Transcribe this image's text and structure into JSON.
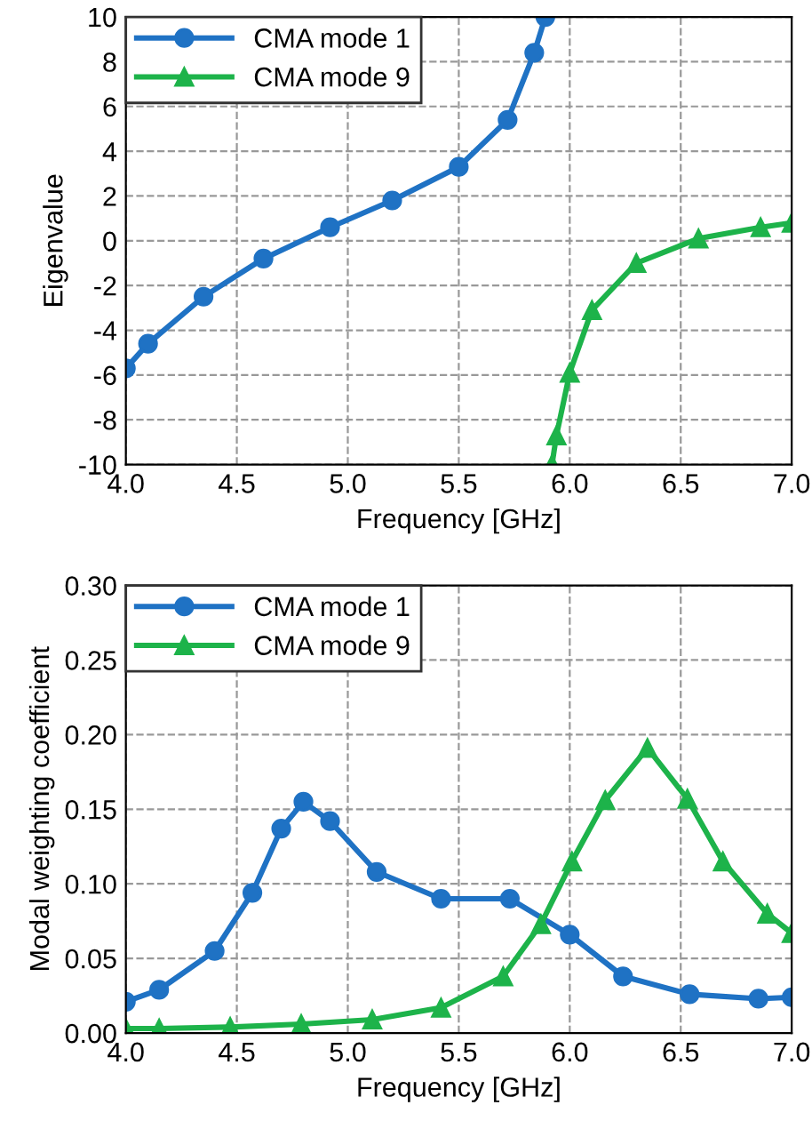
{
  "chart_data": [
    {
      "type": "line",
      "xlabel": "Frequency [GHz]",
      "ylabel": "Eigenvalue",
      "xlim": [
        4.0,
        7.0
      ],
      "ylim": [
        -10,
        10
      ],
      "xticks": [
        {
          "value": 4.0,
          "label": "4.0"
        },
        {
          "value": 4.5,
          "label": "4.5"
        },
        {
          "value": 5.0,
          "label": "5.0"
        },
        {
          "value": 5.5,
          "label": "5.5"
        },
        {
          "value": 6.0,
          "label": "6.0"
        },
        {
          "value": 6.5,
          "label": "6.5"
        },
        {
          "value": 7.0,
          "label": "7.0"
        }
      ],
      "yticks": [
        -10,
        -8,
        -6,
        -4,
        -2,
        0,
        2,
        4,
        6,
        8,
        10
      ],
      "grid": true,
      "legend": "top left",
      "line_style": "solid",
      "series": [
        {
          "name": "CMA mode 1",
          "color": "#1f72c4",
          "marker": "circle",
          "x": [
            4.0,
            4.1,
            4.35,
            4.62,
            4.92,
            5.2,
            5.5,
            5.72,
            5.84,
            5.89
          ],
          "values": [
            -5.7,
            -4.6,
            -2.5,
            -0.8,
            0.6,
            1.8,
            3.3,
            5.4,
            8.4,
            10
          ]
        },
        {
          "name": "CMA mode 9",
          "color": "#1db34a",
          "marker": "triangle",
          "x": [
            5.92,
            5.94,
            6.0,
            6.1,
            6.3,
            6.58,
            6.86,
            7.0
          ],
          "values": [
            -10,
            -8.7,
            -5.9,
            -3.1,
            -1.0,
            0.1,
            0.6,
            0.8
          ]
        }
      ]
    },
    {
      "type": "line",
      "xlabel": "Frequency [GHz]",
      "ylabel": "Modal weighting coefficient",
      "xlim": [
        4.0,
        7.0
      ],
      "ylim": [
        0,
        0.3
      ],
      "xticks": [
        {
          "value": 4.0,
          "label": "4.0"
        },
        {
          "value": 4.5,
          "label": "4.5"
        },
        {
          "value": 5.0,
          "label": "5.0"
        },
        {
          "value": 5.5,
          "label": "5.5"
        },
        {
          "value": 6.0,
          "label": "6.0"
        },
        {
          "value": 6.5,
          "label": "6.5"
        },
        {
          "value": 7.0,
          "label": "7.0"
        }
      ],
      "yticks": [
        {
          "value": 0,
          "label": "0.00"
        },
        {
          "value": 0.05,
          "label": "0.05"
        },
        {
          "value": 0.1,
          "label": "0.10"
        },
        {
          "value": 0.15,
          "label": "0.15"
        },
        {
          "value": 0.2,
          "label": "0.20"
        },
        {
          "value": 0.25,
          "label": "0.25"
        },
        {
          "value": 0.3,
          "label": "0.30"
        }
      ],
      "grid": true,
      "legend": "top left",
      "line_style": "solid",
      "series": [
        {
          "name": "CMA mode 1",
          "color": "#1f72c4",
          "marker": "circle",
          "x": [
            4.0,
            4.15,
            4.4,
            4.57,
            4.7,
            4.8,
            4.92,
            5.13,
            5.42,
            5.73,
            6.0,
            6.24,
            6.54,
            6.85,
            7.0
          ],
          "values": [
            0.021,
            0.029,
            0.055,
            0.094,
            0.137,
            0.155,
            0.142,
            0.108,
            0.09,
            0.09,
            0.066,
            0.038,
            0.026,
            0.023,
            0.024
          ]
        },
        {
          "name": "CMA mode 9",
          "color": "#1db34a",
          "marker": "triangle",
          "x": [
            4.0,
            4.15,
            4.47,
            4.79,
            5.11,
            5.42,
            5.7,
            5.87,
            6.01,
            6.16,
            6.35,
            6.53,
            6.69,
            6.89,
            7.0
          ],
          "values": [
            0.003,
            0.003,
            0.004,
            0.006,
            0.009,
            0.017,
            0.038,
            0.073,
            0.115,
            0.156,
            0.191,
            0.157,
            0.115,
            0.08,
            0.067
          ]
        }
      ]
    }
  ]
}
